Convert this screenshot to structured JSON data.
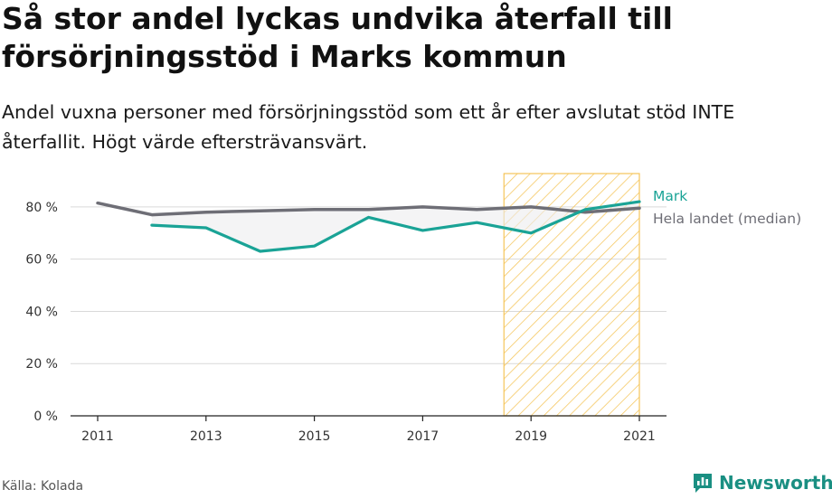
{
  "title": "Så stor andel lyckas undvika återfall till försörjningsstöd i Marks kommun",
  "subtitle": "Andel vuxna personer med försörjningsstöd som ett år efter avslutat stöd INTE återfallit. Högt värde eftersträvansvärt.",
  "source": "Källa: Kolada",
  "brand": "Newsworthy",
  "colors": {
    "mark": "#1aa396",
    "median": "#6e6e76",
    "highlight": "#f5c55a",
    "grid": "#d9d9d9"
  },
  "chart_data": {
    "type": "line",
    "x": [
      2011,
      2012,
      2013,
      2014,
      2015,
      2016,
      2017,
      2018,
      2019,
      2020,
      2021
    ],
    "xticks": [
      "2011",
      "2013",
      "2015",
      "2017",
      "2019",
      "2021"
    ],
    "xlim": [
      2011,
      2021
    ],
    "ylim": [
      0,
      90
    ],
    "yticks": [
      "0 %",
      "20 %",
      "40 %",
      "60 %",
      "80 %"
    ],
    "grid": true,
    "highlight_range": [
      2018.5,
      2021
    ],
    "series": [
      {
        "name": "Mark",
        "values": [
          null,
          73,
          72,
          63,
          65,
          76,
          71,
          74,
          70,
          79,
          82
        ]
      },
      {
        "name": "Hela landet (median)",
        "values": [
          81.5,
          77,
          78,
          78.5,
          79,
          79,
          80,
          79,
          80,
          78,
          79.5
        ]
      }
    ]
  }
}
